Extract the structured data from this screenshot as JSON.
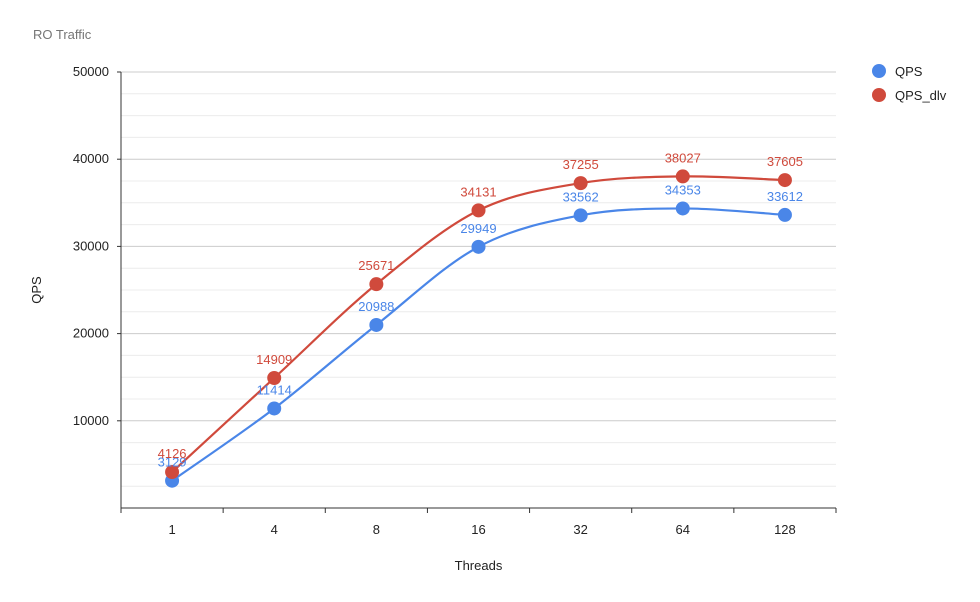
{
  "chart_data": {
    "type": "line",
    "title": "RO Traffic",
    "xlabel": "Threads",
    "ylabel": "QPS",
    "categories": [
      "1",
      "4",
      "8",
      "16",
      "32",
      "64",
      "128"
    ],
    "ylim": [
      0,
      50000
    ],
    "yticks": [
      "10000",
      "20000",
      "30000",
      "40000",
      "50000"
    ],
    "ytick_values": [
      10000,
      20000,
      30000,
      40000,
      50000
    ],
    "smooth": true,
    "grid": true,
    "legend_position": "right",
    "series": [
      {
        "name": "QPS",
        "color": "#4a86e8",
        "values": [
          3129,
          11414,
          20988,
          29949,
          33562,
          34353,
          33612
        ],
        "labels": [
          "3129",
          "11414",
          "20988",
          "29949",
          "33562",
          "34353",
          "33612"
        ]
      },
      {
        "name": "QPS_dlv",
        "color": "#d04a3c",
        "values": [
          4126,
          14909,
          25671,
          34131,
          37255,
          38027,
          37605
        ],
        "labels": [
          "4126",
          "14909",
          "25671",
          "34131",
          "37255",
          "38027",
          "37605"
        ]
      }
    ]
  }
}
